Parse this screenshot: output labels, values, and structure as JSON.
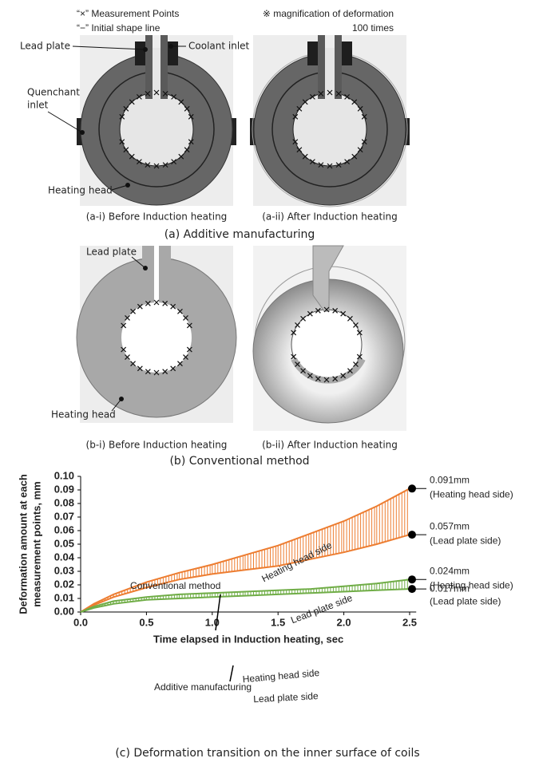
{
  "header": {
    "notes": [
      "“×” Measurement Points",
      "“−” Initial shape line"
    ],
    "magnification": [
      "※ magnification of deformation",
      "100 times"
    ]
  },
  "panel_a": {
    "labels": {
      "lead_plate": "Lead plate",
      "coolant_inlet": "Coolant inlet",
      "quenchant_inlet": [
        "Quenchant",
        "inlet"
      ],
      "heating_head": "Heating head"
    },
    "captions": [
      "(a-i) Before Induction heating",
      "(a-ii) After Induction heating"
    ],
    "title": "(a) Additive manufacturing"
  },
  "panel_b": {
    "labels": {
      "lead_plate": "Lead plate",
      "heating_head": "Heating head"
    },
    "captions": [
      "(b-i) Before Induction heating",
      "(b-ii) After Induction heating"
    ],
    "title": "(b) Conventional method"
  },
  "chart_data": {
    "type": "band",
    "caption": "(c) Deformation transition on the inner surface of coils",
    "x_label": "Time elapsed in Induction heating, sec",
    "y_label": [
      "Deformation amount at each",
      "measurement points, mm"
    ],
    "x": [
      0,
      0.1,
      0.25,
      0.5,
      0.75,
      1.0,
      1.25,
      1.5,
      1.75,
      2.0,
      2.25,
      2.5
    ],
    "xlim": [
      0,
      2.55
    ],
    "ylim": [
      0,
      0.1
    ],
    "xticks": [
      {
        "value": 0,
        "label": "0.0"
      },
      0.5,
      {
        "value": 1,
        "label": "1.0"
      },
      1.5,
      {
        "value": 2,
        "label": "2.0"
      },
      2.5
    ],
    "yticks": [
      {
        "value": 0,
        "label": "0.00"
      },
      0.01,
      0.02,
      0.03,
      0.04,
      0.05,
      0.06,
      0.07,
      0.08,
      0.09,
      {
        "value": 0.1,
        "label": "0.10"
      }
    ],
    "annotations": [
      "Conventional method",
      "Additive manufacturing"
    ],
    "series": [
      {
        "name": "Heating head side",
        "color": "#ed7d31",
        "values": [
          0,
          0.006,
          0.013,
          0.022,
          0.029,
          0.035,
          0.042,
          0.049,
          0.058,
          0.067,
          0.078,
          0.091
        ],
        "value_labels": [
          null,
          null,
          null,
          null,
          null,
          null,
          null,
          null,
          null,
          null,
          null,
          "0.091mm"
        ],
        "end_note": "(Heating head side)"
      },
      {
        "name": "Lead plate side",
        "color": "#ed7d31",
        "values": [
          0,
          0.005,
          0.011,
          0.018,
          0.024,
          0.028,
          0.031,
          0.034,
          0.039,
          0.044,
          0.05,
          0.057
        ],
        "value_labels": [
          null,
          null,
          null,
          null,
          null,
          null,
          null,
          null,
          null,
          null,
          null,
          "0.057mm"
        ],
        "end_note": "(Lead plate side)"
      },
      {
        "name": "Heating head side",
        "color": "#70ad47",
        "values": [
          0,
          0.004,
          0.008,
          0.011,
          0.013,
          0.014,
          0.015,
          0.016,
          0.017,
          0.019,
          0.021,
          0.024
        ],
        "value_labels": [
          null,
          null,
          null,
          null,
          null,
          null,
          null,
          null,
          null,
          null,
          null,
          "0.024mm"
        ],
        "end_note": "(Heating head side)"
      },
      {
        "name": "Lead plate side",
        "color": "#70ad47",
        "values": [
          0,
          0.003,
          0.006,
          0.009,
          0.01,
          0.011,
          0.012,
          0.013,
          0.014,
          0.015,
          0.016,
          0.017
        ],
        "value_labels": [
          null,
          null,
          null,
          null,
          null,
          null,
          null,
          null,
          null,
          null,
          null,
          "0.017mm"
        ],
        "end_note": "(Lead plate side)"
      }
    ]
  }
}
